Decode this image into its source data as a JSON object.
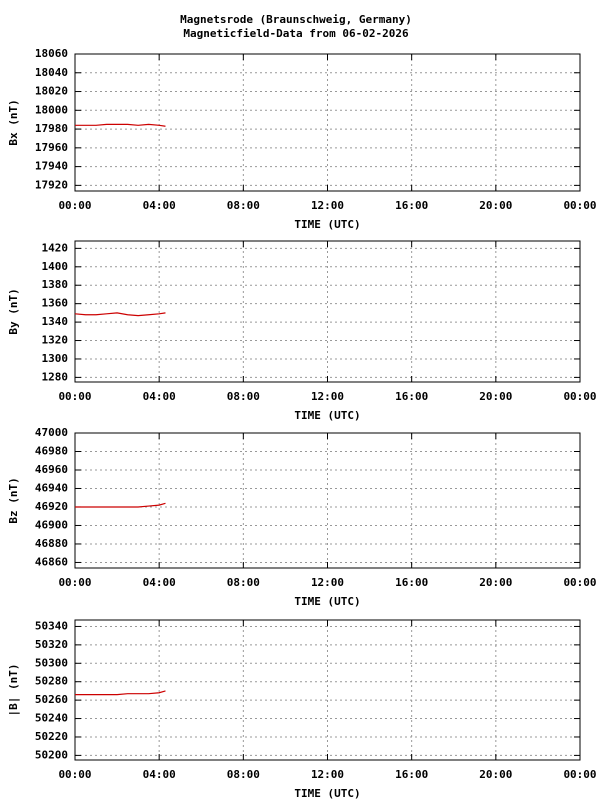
{
  "title": "Magnetsrode (Braunschweig, Germany)",
  "subtitle": "Magneticfield-Data from 06-02-2026",
  "chart_data": [
    {
      "type": "line",
      "ylabel": "Bx (nT)",
      "xlabel": "TIME (UTC)",
      "grid": true,
      "xlim": [
        0,
        24
      ],
      "xticks": [
        {
          "value": 0,
          "label": "00:00"
        },
        {
          "value": 4,
          "label": "04:00"
        },
        {
          "value": 8,
          "label": "08:00"
        },
        {
          "value": 12,
          "label": "12:00"
        },
        {
          "value": 16,
          "label": "16:00"
        },
        {
          "value": 20,
          "label": "20:00"
        },
        {
          "value": 24,
          "label": "00:00"
        }
      ],
      "ylim": [
        17914,
        18060
      ],
      "yticks": [
        17920,
        17940,
        17960,
        17980,
        18000,
        18020,
        18040,
        18060
      ],
      "x": [
        0,
        0.5,
        1,
        1.5,
        2,
        2.5,
        3,
        3.5,
        4,
        4.3
      ],
      "series": [
        {
          "name": "Bx",
          "color": "#cc0000",
          "values": [
            17984,
            17984,
            17984,
            17985,
            17985,
            17985,
            17984,
            17985,
            17984,
            17983
          ]
        }
      ]
    },
    {
      "type": "line",
      "ylabel": "By (nT)",
      "xlabel": "TIME (UTC)",
      "grid": true,
      "xlim": [
        0,
        24
      ],
      "xticks": [
        {
          "value": 0,
          "label": "00:00"
        },
        {
          "value": 4,
          "label": "04:00"
        },
        {
          "value": 8,
          "label": "08:00"
        },
        {
          "value": 12,
          "label": "12:00"
        },
        {
          "value": 16,
          "label": "16:00"
        },
        {
          "value": 20,
          "label": "20:00"
        },
        {
          "value": 24,
          "label": "00:00"
        }
      ],
      "ylim": [
        1275,
        1428
      ],
      "yticks": [
        1280,
        1300,
        1320,
        1340,
        1360,
        1380,
        1400,
        1420
      ],
      "x": [
        0,
        0.5,
        1,
        1.5,
        2,
        2.5,
        3,
        3.5,
        4,
        4.3
      ],
      "series": [
        {
          "name": "By",
          "color": "#cc0000",
          "values": [
            1349,
            1348,
            1348,
            1349,
            1350,
            1348,
            1347,
            1348,
            1349,
            1350
          ]
        }
      ]
    },
    {
      "type": "line",
      "ylabel": "Bz (nT)",
      "xlabel": "TIME (UTC)",
      "grid": true,
      "xlim": [
        0,
        24
      ],
      "xticks": [
        {
          "value": 0,
          "label": "00:00"
        },
        {
          "value": 4,
          "label": "04:00"
        },
        {
          "value": 8,
          "label": "08:00"
        },
        {
          "value": 12,
          "label": "12:00"
        },
        {
          "value": 16,
          "label": "16:00"
        },
        {
          "value": 20,
          "label": "20:00"
        },
        {
          "value": 24,
          "label": "00:00"
        }
      ],
      "ylim": [
        46854,
        47000
      ],
      "yticks": [
        46860,
        46880,
        46900,
        46920,
        46940,
        46960,
        46980,
        47000
      ],
      "x": [
        0,
        0.5,
        1,
        1.5,
        2,
        2.5,
        3,
        3.5,
        4,
        4.3
      ],
      "series": [
        {
          "name": "Bz",
          "color": "#cc0000",
          "values": [
            46920,
            46920,
            46920,
            46920,
            46920,
            46920,
            46920,
            46921,
            46922,
            46924
          ]
        }
      ]
    },
    {
      "type": "line",
      "ylabel": "|B| (nT)",
      "xlabel": "TIME (UTC)",
      "grid": true,
      "xlim": [
        0,
        24
      ],
      "xticks": [
        {
          "value": 0,
          "label": "00:00"
        },
        {
          "value": 4,
          "label": "04:00"
        },
        {
          "value": 8,
          "label": "08:00"
        },
        {
          "value": 12,
          "label": "12:00"
        },
        {
          "value": 16,
          "label": "16:00"
        },
        {
          "value": 20,
          "label": "20:00"
        },
        {
          "value": 24,
          "label": "00:00"
        }
      ],
      "ylim": [
        50195,
        50347
      ],
      "yticks": [
        50200,
        50220,
        50240,
        50260,
        50280,
        50300,
        50320,
        50340
      ],
      "x": [
        0,
        0.5,
        1,
        1.5,
        2,
        2.5,
        3,
        3.5,
        4,
        4.3
      ],
      "series": [
        {
          "name": "|B|",
          "color": "#cc0000",
          "values": [
            50266,
            50266,
            50266,
            50266,
            50266,
            50267,
            50267,
            50267,
            50268,
            50270
          ]
        }
      ]
    }
  ]
}
